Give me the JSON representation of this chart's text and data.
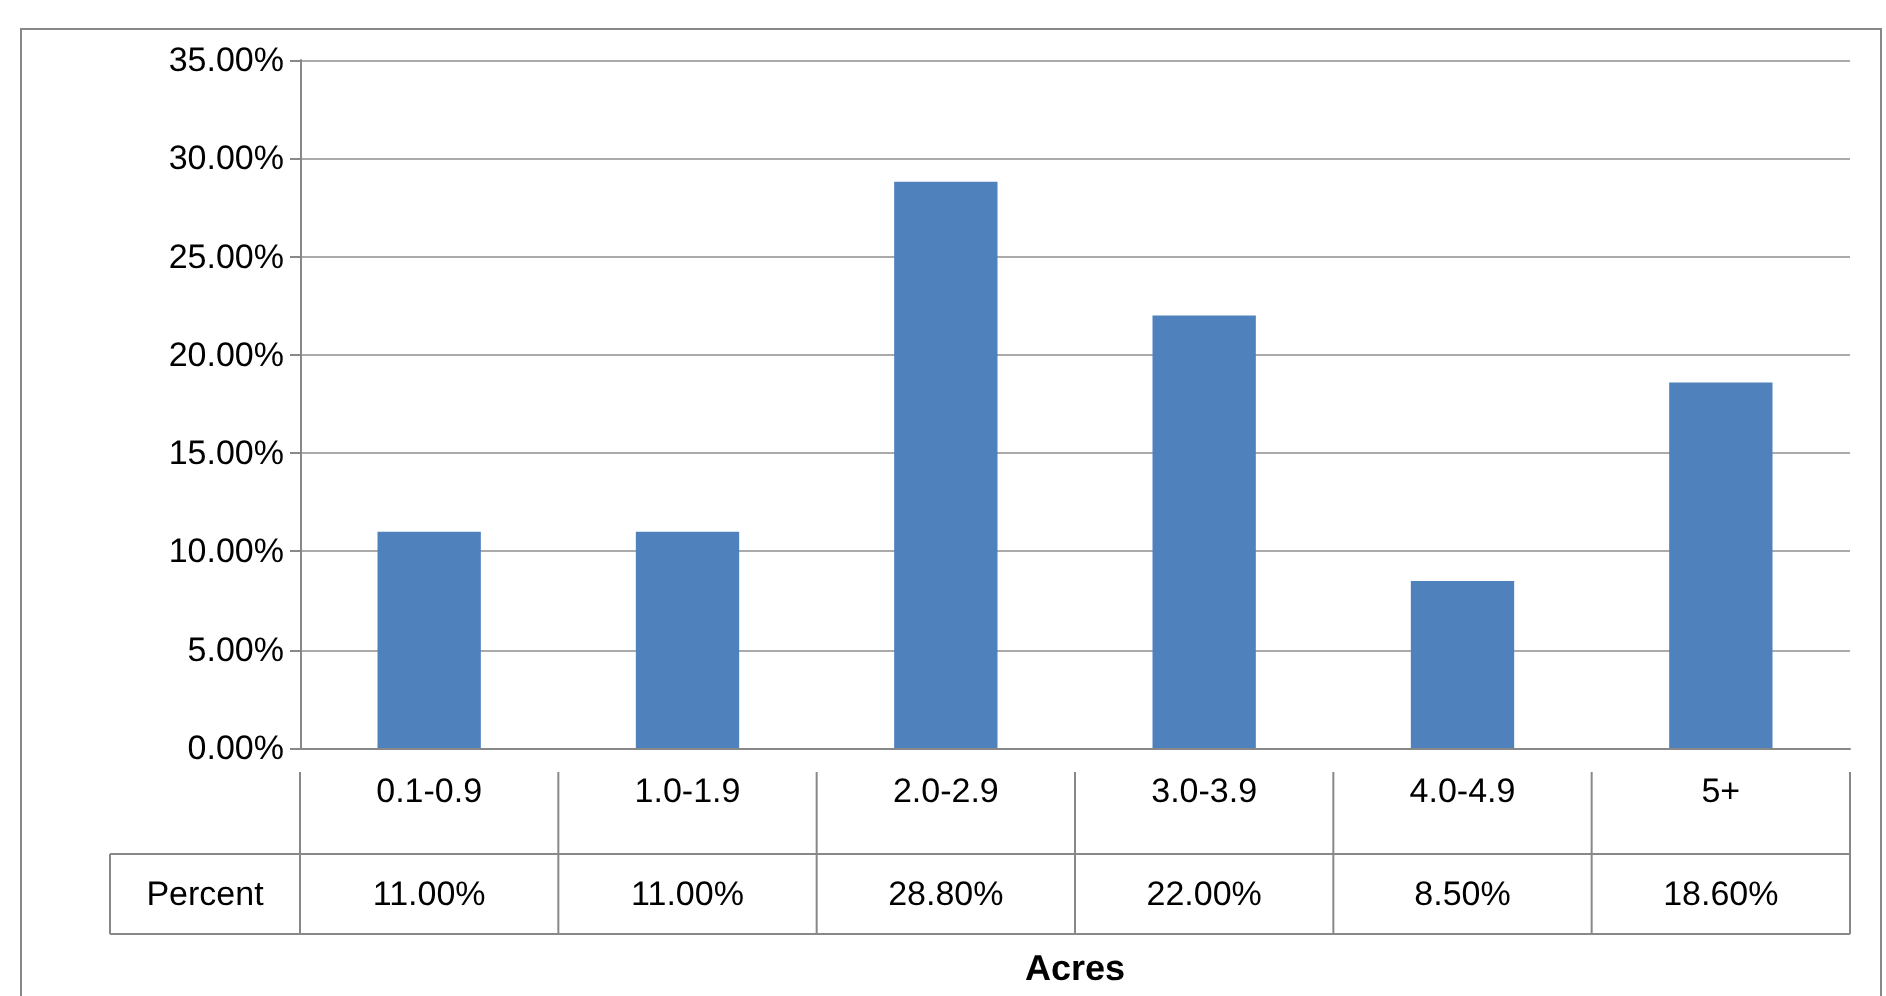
{
  "chart_data": {
    "type": "bar",
    "xlabel": "Acres",
    "categories": [
      "0.1-0.9",
      "1.0-1.9",
      "2.0-2.9",
      "3.0-3.9",
      "4.0-4.9",
      "5+"
    ],
    "series": [
      {
        "name": "Percent",
        "color": "#4f81bd",
        "values": [
          11.0,
          11.0,
          28.8,
          22.0,
          8.5,
          18.6
        ],
        "value_labels": [
          "11.00%",
          "11.00%",
          "28.80%",
          "22.00%",
          "8.50%",
          "18.60%"
        ]
      }
    ],
    "ylim": [
      0,
      35
    ],
    "yticks": [
      {
        "value": 0,
        "label": "0.00%"
      },
      {
        "value": 5,
        "label": "5.00%"
      },
      {
        "value": 10,
        "label": "10.00%"
      },
      {
        "value": 15,
        "label": "15.00%"
      },
      {
        "value": 20,
        "label": "20.00%"
      },
      {
        "value": 25,
        "label": "25.00%"
      },
      {
        "value": 30,
        "label": "30.00%"
      },
      {
        "value": 35,
        "label": "35.00%"
      }
    ],
    "grid": "y",
    "legend": false
  }
}
